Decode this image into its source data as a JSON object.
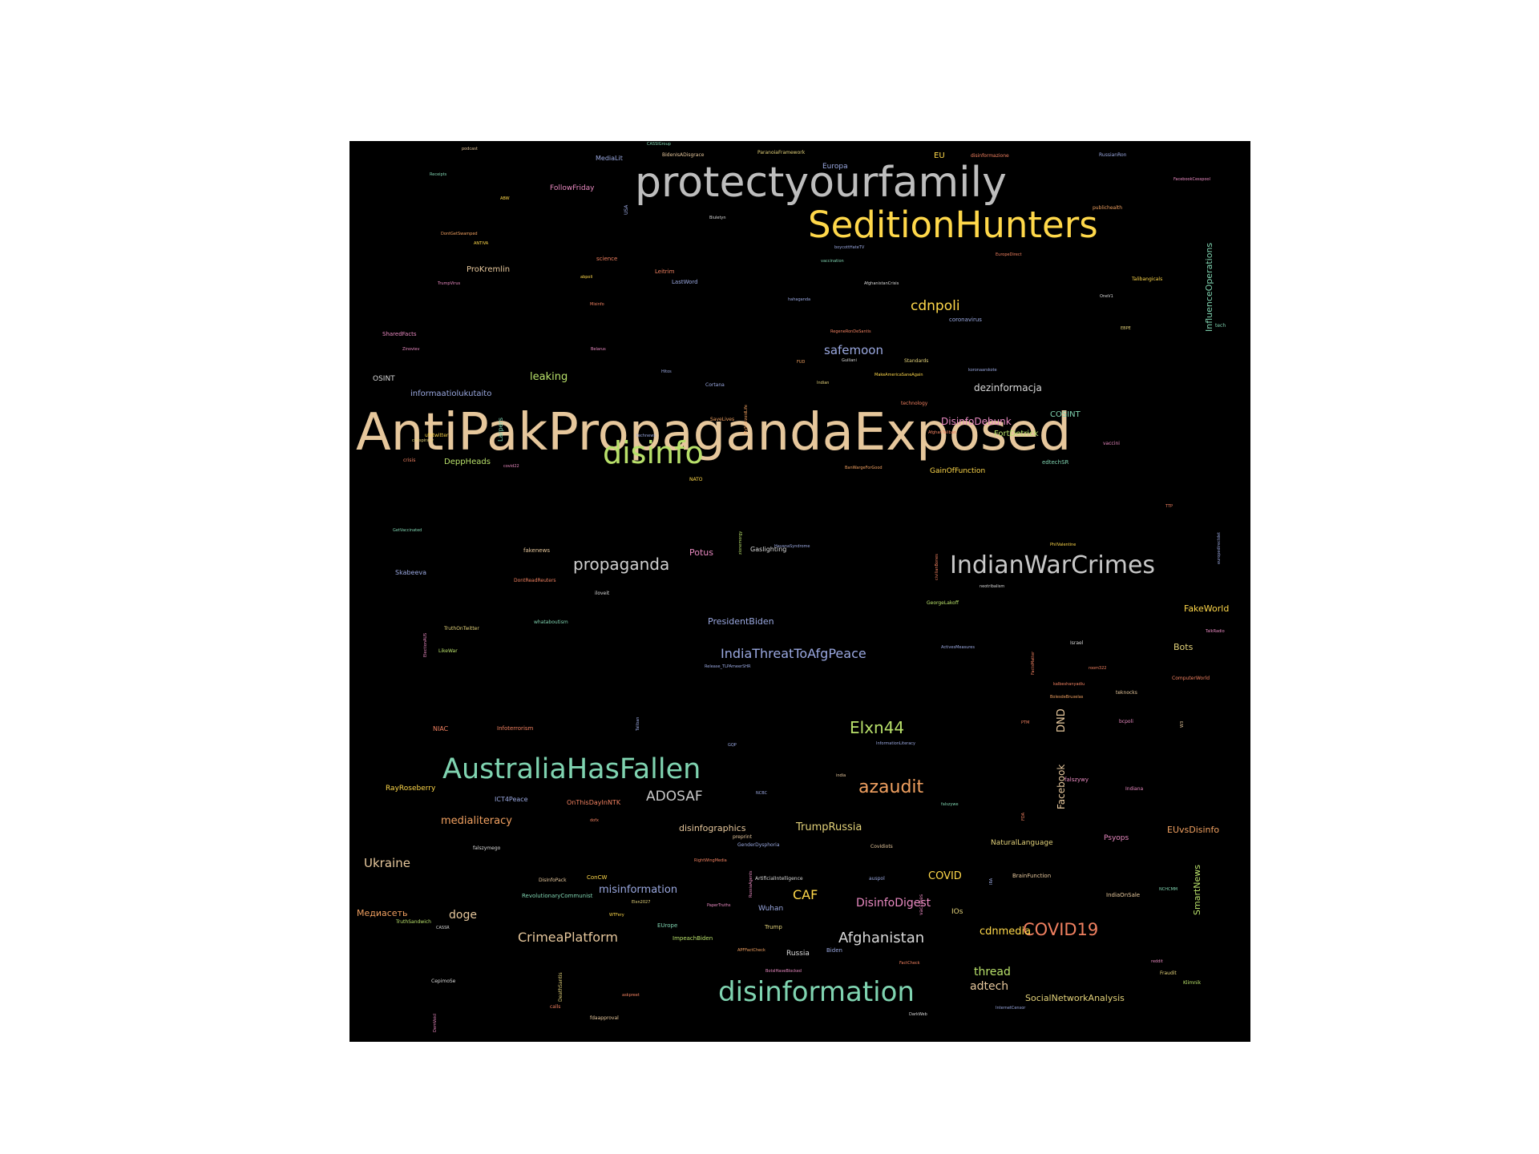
{
  "palette": [
    "#deb887",
    "#ffd700",
    "#c8c8c8",
    "#b8e06a",
    "#7fd3b0",
    "#e8a07a",
    "#9aa8e0",
    "#e889c0",
    "#e3d27a",
    "#f0a060",
    "#d9d9d9"
  ],
  "words": [
    {
      "text": "AntiPakPropagandaExposed",
      "color": "#e6c79c"
    },
    {
      "text": "protectyourfamily",
      "color": "#bdbdbd"
    },
    {
      "text": "SeditionHunters",
      "color": "#ffd84a"
    },
    {
      "text": "disinfo",
      "color": "#b8e06a"
    },
    {
      "text": "IndianWarCrimes",
      "color": "#c8c8c8"
    },
    {
      "text": "AustraliaHasFallen",
      "color": "#7fd3b0"
    },
    {
      "text": "disinformation",
      "color": "#7fd3b0"
    },
    {
      "text": "propaganda",
      "color": "#d0d0d0"
    },
    {
      "text": "Elxn44",
      "color": "#b8e06a"
    },
    {
      "text": "azaudit",
      "color": "#f0a060"
    },
    {
      "text": "COVID19",
      "color": "#f08060"
    },
    {
      "text": "Afghanistan",
      "color": "#d9d9d9"
    },
    {
      "text": "CrimeaPlatform",
      "color": "#e6c79c"
    },
    {
      "text": "cdnpoli",
      "color": "#ffd84a"
    },
    {
      "text": "safemoon",
      "color": "#9aa8e0"
    },
    {
      "text": "IndiaThreatToAfgPeace",
      "color": "#9aa8e0"
    },
    {
      "text": "ADOSAF",
      "color": "#c8c8c8"
    },
    {
      "text": "medialiteracy",
      "color": "#f0a060"
    },
    {
      "text": "CAF",
      "color": "#ffd84a"
    },
    {
      "text": "TrumpRussia",
      "color": "#e3d27a"
    },
    {
      "text": "Ukraine",
      "color": "#e6c79c"
    },
    {
      "text": "leaking",
      "color": "#b8e06a"
    },
    {
      "text": "dezinformacja",
      "color": "#d9d9d9"
    },
    {
      "text": "DisinfoDebunk",
      "color": "#e889c0"
    },
    {
      "text": "DisinfoDigest",
      "color": "#e889c0"
    },
    {
      "text": "cdnmedia",
      "color": "#ffd84a"
    },
    {
      "text": "thread",
      "color": "#b8e06a"
    },
    {
      "text": "adtech",
      "color": "#e6c79c"
    },
    {
      "text": "misinformation",
      "color": "#9aa8e0"
    },
    {
      "text": "doge",
      "color": "#e6c79c"
    },
    {
      "text": "COVID",
      "color": "#ffd84a"
    },
    {
      "text": "DND",
      "color": "#e6c79c"
    },
    {
      "text": "Facebook",
      "color": "#e6c79c"
    },
    {
      "text": "InfluenceOperations",
      "color": "#7fd3b0"
    },
    {
      "text": "SmartNews",
      "color": "#b8e06a"
    },
    {
      "text": "FakeWorld",
      "color": "#ffd84a"
    },
    {
      "text": "Bots",
      "color": "#e3d27a"
    },
    {
      "text": "EUvsDisinfo",
      "color": "#f0a060"
    },
    {
      "text": "disinfographics",
      "color": "#e6c79c"
    },
    {
      "text": "SocialNetworkAnalysis",
      "color": "#e3d27a"
    },
    {
      "text": "PresidentBiden",
      "color": "#9aa8e0"
    },
    {
      "text": "Медиасеть",
      "color": "#f0a060"
    },
    {
      "text": "ProKremlin",
      "color": "#e6c79c"
    },
    {
      "text": "FollowFriday",
      "color": "#e889c0"
    },
    {
      "text": "DeppHeads",
      "color": "#b8e06a"
    },
    {
      "text": "informaatiolukutaito",
      "color": "#9aa8e0"
    },
    {
      "text": "COSINT",
      "color": "#7fd3b0"
    },
    {
      "text": "FortDetrick",
      "color": "#b8e06a"
    },
    {
      "text": "Potus",
      "color": "#e889c0"
    },
    {
      "text": "OSINT",
      "color": "#d9d9d9"
    },
    {
      "text": "Psyops",
      "color": "#e889c0"
    },
    {
      "text": "NaturalLanguage",
      "color": "#e3d27a"
    },
    {
      "text": "IOs",
      "color": "#e3d27a"
    },
    {
      "text": "Wuhan",
      "color": "#9aa8e0"
    },
    {
      "text": "Russia",
      "color": "#d9d9d9"
    },
    {
      "text": "EU",
      "color": "#ffd84a"
    },
    {
      "text": "Europa",
      "color": "#9aa8e0"
    },
    {
      "text": "GainOfFunction",
      "color": "#ffd84a"
    },
    {
      "text": "RayRoseberry",
      "color": "#ffd84a"
    },
    {
      "text": "ICT4Peace",
      "color": "#9aa8e0"
    },
    {
      "text": "OnThisDayInNTK",
      "color": "#f08060"
    },
    {
      "text": "NIAC",
      "color": "#f08060"
    },
    {
      "text": "Infoterrorism",
      "color": "#f08060"
    },
    {
      "text": "fakenews",
      "color": "#e6c79c"
    },
    {
      "text": "Skabeeva",
      "color": "#9aa8e0"
    },
    {
      "text": "MediaLit",
      "color": "#9aa8e0"
    },
    {
      "text": "science",
      "color": "#f08060"
    },
    {
      "text": "Leitrim",
      "color": "#f08060"
    },
    {
      "text": "LastWord",
      "color": "#9aa8e0"
    },
    {
      "text": "Gaslighting",
      "color": "#d9d9d9"
    },
    {
      "text": "coronavirus",
      "color": "#9aa8e0"
    },
    {
      "text": "SharedFacts",
      "color": "#e889c0"
    },
    {
      "text": "edtechSR",
      "color": "#7fd3b0"
    },
    {
      "text": "ConCW",
      "color": "#ffd84a"
    },
    {
      "text": "RevolutionaryCommunist",
      "color": "#7fd3b0"
    },
    {
      "text": "EUrope",
      "color": "#7fd3b0"
    },
    {
      "text": "ImpeachBiden",
      "color": "#b8e06a"
    },
    {
      "text": "Trump",
      "color": "#e3d27a"
    },
    {
      "text": "Biden",
      "color": "#9aa8e0"
    },
    {
      "text": "IndiaOnSale",
      "color": "#e6c79c"
    },
    {
      "text": "BrainFunction",
      "color": "#e6c79c"
    },
    {
      "text": "falszywy",
      "color": "#e889c0"
    },
    {
      "text": "Larpers",
      "color": "#7fd3b0"
    },
    {
      "text": "ufotwitter",
      "color": "#ffd84a"
    },
    {
      "text": "crisis",
      "color": "#f08060"
    },
    {
      "text": "USA",
      "color": "#9aa8e0"
    },
    {
      "text": "ParanoiaFramework",
      "color": "#e3d27a"
    },
    {
      "text": "BidenIsADisgrace",
      "color": "#e6c79c"
    },
    {
      "text": "disinformazione",
      "color": "#f08060"
    },
    {
      "text": "RussianRon",
      "color": "#9aa8e0"
    },
    {
      "text": "publichealth",
      "color": "#f0a060"
    },
    {
      "text": "Talibangicals",
      "color": "#ffd84a"
    },
    {
      "text": "tech",
      "color": "#7fd3b0"
    },
    {
      "text": "Standards",
      "color": "#e3d27a"
    },
    {
      "text": "technology",
      "color": "#f08060"
    },
    {
      "text": "SaveLives",
      "color": "#f0a060"
    },
    {
      "text": "Cortana",
      "color": "#9aa8e0"
    },
    {
      "text": "vaccini",
      "color": "#e889c0"
    },
    {
      "text": "NATO",
      "color": "#ffd84a"
    },
    {
      "text": "iloveit",
      "color": "#d9d9d9"
    },
    {
      "text": "TruthOnTwitter",
      "color": "#e3d27a"
    },
    {
      "text": "LikeWar",
      "color": "#b8e06a"
    },
    {
      "text": "whataboutism",
      "color": "#7fd3b0"
    },
    {
      "text": "GeorgeLakoff",
      "color": "#b8e06a"
    },
    {
      "text": "Israel",
      "color": "#d9d9d9"
    },
    {
      "text": "teknocks",
      "color": "#e6c79c"
    },
    {
      "text": "bcpoli",
      "color": "#e889c0"
    },
    {
      "text": "ComputerWorld",
      "color": "#f08060"
    },
    {
      "text": "Indiana",
      "color": "#e889c0"
    },
    {
      "text": "vaccines",
      "color": "#e889c0"
    },
    {
      "text": "auspol",
      "color": "#9aa8e0"
    },
    {
      "text": "ArtificialIntelligence",
      "color": "#d9d9d9"
    },
    {
      "text": "DontReadReuters",
      "color": "#f08060"
    },
    {
      "text": "Fraudit",
      "color": "#e3d27a"
    },
    {
      "text": "Klimnik",
      "color": "#b8e06a"
    },
    {
      "text": "calls",
      "color": "#f08060"
    },
    {
      "text": "fdaapproval",
      "color": "#e6c79c"
    },
    {
      "text": "DisInfoPack",
      "color": "#e6c79c"
    },
    {
      "text": "TruthSandwich",
      "color": "#b8e06a"
    },
    {
      "text": "CepimoSe",
      "color": "#d9d9d9"
    },
    {
      "text": "DeathSantis",
      "color": "#e3d27a"
    },
    {
      "text": "preprint",
      "color": "#e6c79c"
    },
    {
      "text": "GenderDysphoria",
      "color": "#9aa8e0"
    },
    {
      "text": "CovIdiots",
      "color": "#e6c79c"
    },
    {
      "text": "falszymego",
      "color": "#d9d9d9"
    },
    {
      "text": "ANTIVA",
      "color": "#ffd84a"
    },
    {
      "text": "abpoli",
      "color": "#ffd84a"
    },
    {
      "text": "TrumpVirus",
      "color": "#e889c0"
    },
    {
      "text": "Misinfo",
      "color": "#f08060"
    },
    {
      "text": "Biuletyn",
      "color": "#d9d9d9"
    },
    {
      "text": "boycottHateTV",
      "color": "#9aa8e0"
    },
    {
      "text": "vaccination",
      "color": "#7fd3b0"
    },
    {
      "text": "hahaganda",
      "color": "#9aa8e0"
    },
    {
      "text": "OneV1",
      "color": "#d9d9d9"
    },
    {
      "text": "Guiliani",
      "color": "#d9d9d9"
    },
    {
      "text": "MakeAmericaSaneAgain",
      "color": "#ffd84a"
    },
    {
      "text": "Indian",
      "color": "#e3d27a"
    },
    {
      "text": "FUD",
      "color": "#f0a060"
    },
    {
      "text": "AfghanTaliban",
      "color": "#f08060"
    },
    {
      "text": "BanWargeForGood",
      "color": "#f0a060"
    },
    {
      "text": "neotribalism",
      "color": "#d9d9d9"
    },
    {
      "text": "ElectionAUS",
      "color": "#e889c0"
    },
    {
      "text": "Release_TLPAmeerSHR",
      "color": "#9aa8e0"
    },
    {
      "text": "GetVaccinated",
      "color": "#7fd3b0"
    },
    {
      "text": "ABW",
      "color": "#ffd84a"
    },
    {
      "text": "podcast",
      "color": "#e6c79c"
    },
    {
      "text": "Receipts",
      "color": "#7fd3b0"
    },
    {
      "text": "CASSIGroup",
      "color": "#7fd3b0"
    },
    {
      "text": "DontGetSwamped",
      "color": "#f0a060"
    },
    {
      "text": "Zinoviev",
      "color": "#e889c0"
    },
    {
      "text": "Belarus",
      "color": "#e889c0"
    },
    {
      "text": "conspiracy",
      "color": "#e3d27a"
    },
    {
      "text": "covid22",
      "color": "#e889c0"
    },
    {
      "text": "technews",
      "color": "#9aa8e0"
    },
    {
      "text": "MySchizoidLife",
      "color": "#f0a060"
    },
    {
      "text": "Hitos",
      "color": "#9aa8e0"
    },
    {
      "text": "RegeneRonDeSantis",
      "color": "#f08060"
    },
    {
      "text": "AfghanistanCrisis",
      "color": "#d9d9d9"
    },
    {
      "text": "EuropeDirect",
      "color": "#f08060"
    },
    {
      "text": "FacebookCesspool",
      "color": "#e889c0"
    },
    {
      "text": "EBPE",
      "color": "#e3d27a"
    },
    {
      "text": "koronaarskote",
      "color": "#9aa8e0"
    },
    {
      "text": "TTP",
      "color": "#f08060"
    },
    {
      "text": "europedirectdet",
      "color": "#9aa8e0"
    },
    {
      "text": "PhilValentine",
      "color": "#ffd84a"
    },
    {
      "text": "HavanaSyndrome",
      "color": "#9aa8e0"
    },
    {
      "text": "zionemorgy",
      "color": "#b8e06a"
    },
    {
      "text": "civilianBones",
      "color": "#f08060"
    },
    {
      "text": "TalkRadio",
      "color": "#e889c0"
    },
    {
      "text": "ActivesMeasures",
      "color": "#9aa8e0"
    },
    {
      "text": "FactsMatter",
      "color": "#f08060"
    },
    {
      "text": "room322",
      "color": "#f08060"
    },
    {
      "text": "kalbeshanyadiu",
      "color": "#f08060"
    },
    {
      "text": "BolesdeBruxelas",
      "color": "#f0a060"
    },
    {
      "text": "PTM",
      "color": "#f08060"
    },
    {
      "text": "W3",
      "color": "#e6c79c"
    },
    {
      "text": "Taliban",
      "color": "#9aa8e0"
    },
    {
      "text": "GQP",
      "color": "#9aa8e0"
    },
    {
      "text": "InformationLiteracy",
      "color": "#9aa8e0"
    },
    {
      "text": "india",
      "color": "#e6c79c"
    },
    {
      "text": "NCBC",
      "color": "#9aa8e0"
    },
    {
      "text": "FDA",
      "color": "#f08060"
    },
    {
      "text": "falszywe",
      "color": "#7fd3b0"
    },
    {
      "text": "dofx",
      "color": "#f08060"
    },
    {
      "text": "RightWingMedia",
      "color": "#f08060"
    },
    {
      "text": "RussiaAgents",
      "color": "#e889c0"
    },
    {
      "text": "Elxn2027",
      "color": "#e3d27a"
    },
    {
      "text": "PaperTruths",
      "color": "#e889c0"
    },
    {
      "text": "WTFery",
      "color": "#ffd84a"
    },
    {
      "text": "CASSR",
      "color": "#d9d9d9"
    },
    {
      "text": "IRA",
      "color": "#9aa8e0"
    },
    {
      "text": "NCHCMM",
      "color": "#7fd3b0"
    },
    {
      "text": "APFFactCheck",
      "color": "#f0a060"
    },
    {
      "text": "BotsIHaveBlocked",
      "color": "#e889c0"
    },
    {
      "text": "FactCheck",
      "color": "#f08060"
    },
    {
      "text": "reddit",
      "color": "#e889c0"
    },
    {
      "text": "askpreet",
      "color": "#f08060"
    },
    {
      "text": "DarkWeb",
      "color": "#d9d9d9"
    },
    {
      "text": "InternetCensor",
      "color": "#9aa8e0"
    },
    {
      "text": "DemVoicI",
      "color": "#e889c0"
    }
  ]
}
